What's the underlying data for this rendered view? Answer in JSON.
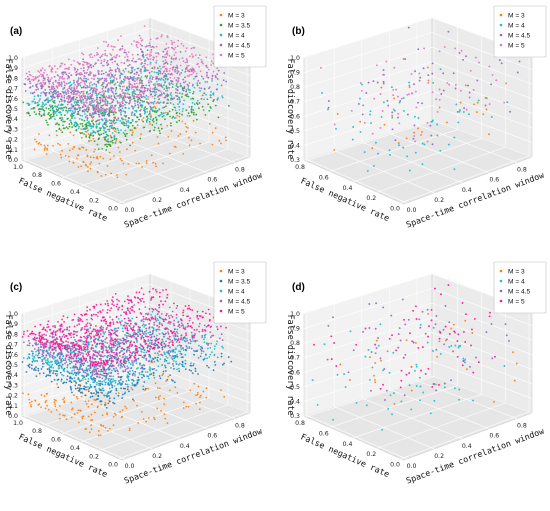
{
  "chart_data": [
    {
      "type": "scatter",
      "panel_label": "(a)",
      "xlabel": "Space-time correlation window",
      "ylabel": "False negative rate",
      "zlabel": "False discovery rate",
      "x_ticks": [
        "0.0",
        "0.2",
        "0.4",
        "0.6",
        "0.8"
      ],
      "y_ticks": [
        "0.0",
        "0.2",
        "0.4",
        "0.6",
        "0.8",
        "1.0"
      ],
      "z_ticks": [
        "0.0",
        "0.1",
        "0.2",
        "0.3",
        "0.4",
        "0.5",
        "0.6",
        "0.7",
        "0.8",
        "0.9",
        "1.0"
      ],
      "xlim": [
        0,
        0.9
      ],
      "ylim": [
        0,
        1.0
      ],
      "zlim": [
        0,
        1.0
      ],
      "legend_position": "top-right",
      "series": [
        {
          "name": "M = 3",
          "color": "#ff7f0e"
        },
        {
          "name": "M = 3.5",
          "color": "#2ca02c"
        },
        {
          "name": "M = 4",
          "color": "#17becf"
        },
        {
          "name": "M = 4.5",
          "color": "#9467bd"
        },
        {
          "name": "M = 5",
          "color": "#e377c2"
        }
      ]
    },
    {
      "type": "scatter",
      "panel_label": "(b)",
      "xlabel": "Space-time correlation window",
      "ylabel": "False negative rate",
      "zlabel": "False discovery rate",
      "x_ticks": [
        "0.0",
        "0.2",
        "0.4",
        "0.6",
        "0.8"
      ],
      "y_ticks": [
        "0.0",
        "0.2",
        "0.4",
        "0.6",
        "0.8"
      ],
      "z_ticks": [
        "0.3",
        "0.4",
        "0.5",
        "0.6",
        "0.7",
        "0.8",
        "0.9",
        "1.0"
      ],
      "xlim": [
        0,
        0.9
      ],
      "ylim": [
        0,
        0.9
      ],
      "zlim": [
        0.3,
        1.0
      ],
      "legend_position": "top-right",
      "series": [
        {
          "name": "M = 3",
          "color": "#ff7f0e"
        },
        {
          "name": "M = 4",
          "color": "#17becf"
        },
        {
          "name": "M = 4.5",
          "color": "#9467bd"
        },
        {
          "name": "M = 5",
          "color": "#e377c2"
        }
      ]
    },
    {
      "type": "scatter",
      "panel_label": "(c)",
      "xlabel": "Space-time correlation window",
      "ylabel": "False negative rate",
      "zlabel": "False discovery rate",
      "x_ticks": [
        "0.0",
        "0.2",
        "0.4",
        "0.6",
        "0.8"
      ],
      "y_ticks": [
        "0.0",
        "0.2",
        "0.4",
        "0.6",
        "0.8",
        "1.0"
      ],
      "z_ticks": [
        "0.0",
        "0.1",
        "0.2",
        "0.3",
        "0.4",
        "0.5",
        "0.6",
        "0.7",
        "0.8",
        "0.9",
        "1.0"
      ],
      "xlim": [
        0,
        0.9
      ],
      "ylim": [
        0,
        1.0
      ],
      "zlim": [
        0,
        1.0
      ],
      "legend_position": "top-right",
      "series": [
        {
          "name": "M = 3",
          "color": "#ff7f0e"
        },
        {
          "name": "M = 3.5",
          "color": "#1f77b4"
        },
        {
          "name": "M = 4",
          "color": "#17becf"
        },
        {
          "name": "M = 4.5",
          "color": "#9467bd"
        },
        {
          "name": "M = 5",
          "color": "#ff1493"
        }
      ]
    },
    {
      "type": "scatter",
      "panel_label": "(d)",
      "xlabel": "Space-time correlation window",
      "ylabel": "False negative rate",
      "zlabel": "False discovery rate",
      "x_ticks": [
        "0.0",
        "0.2",
        "0.4",
        "0.6",
        "0.8"
      ],
      "y_ticks": [
        "0.0",
        "0.2",
        "0.4",
        "0.6",
        "0.8"
      ],
      "z_ticks": [
        "0.3",
        "0.4",
        "0.5",
        "0.6",
        "0.7",
        "0.8",
        "0.9",
        "1.0"
      ],
      "xlim": [
        0,
        0.9
      ],
      "ylim": [
        0,
        0.9
      ],
      "zlim": [
        0.3,
        1.0
      ],
      "legend_position": "top-right",
      "series": [
        {
          "name": "M = 3",
          "color": "#ff7f0e"
        },
        {
          "name": "M = 4",
          "color": "#17becf"
        },
        {
          "name": "M = 4.5",
          "color": "#9467bd"
        },
        {
          "name": "M = 5",
          "color": "#ff1493"
        }
      ]
    }
  ]
}
